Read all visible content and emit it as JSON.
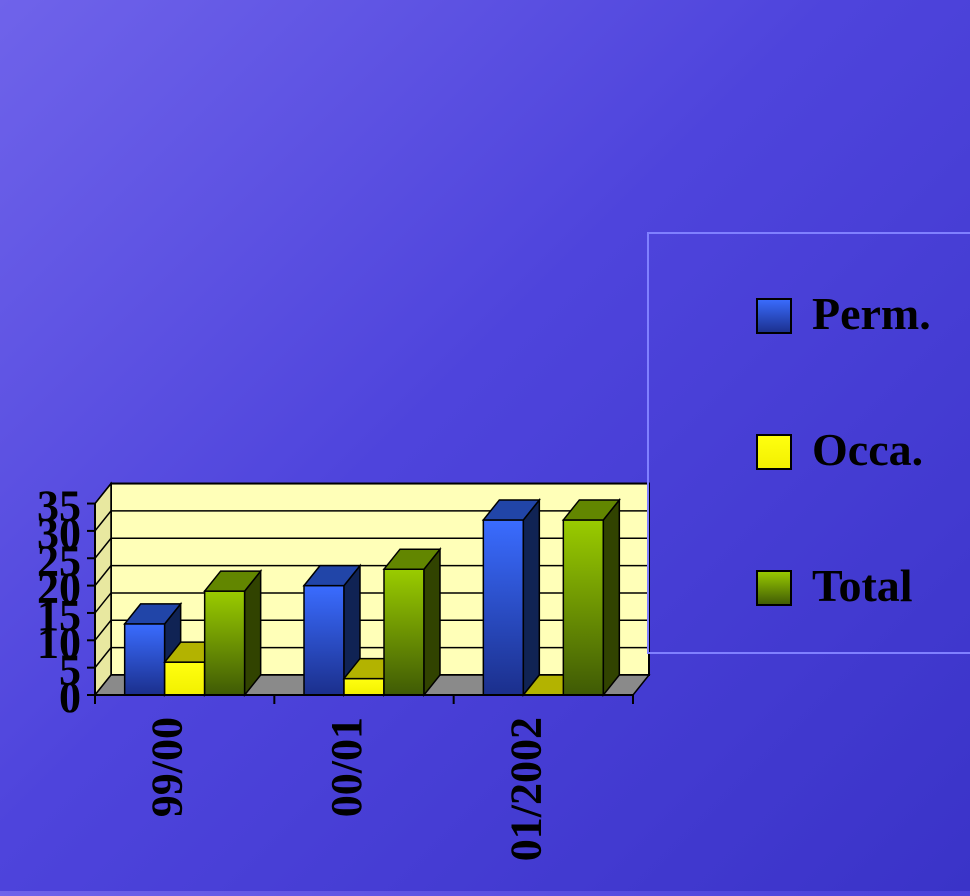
{
  "chart_data": {
    "type": "bar",
    "title": "",
    "xlabel": "",
    "ylabel": "",
    "categories": [
      "99/00",
      "00/01",
      "01/2002"
    ],
    "series": [
      {
        "name": "Perm.",
        "values": [
          13,
          20,
          32
        ],
        "color": "#2f63f0"
      },
      {
        "name": "Occa.",
        "values": [
          6,
          3,
          0
        ],
        "color": "#ffff00"
      },
      {
        "name": "Total",
        "values": [
          19,
          23,
          32
        ],
        "color": "#8cc000"
      }
    ],
    "ylim": [
      0,
      35
    ],
    "yticks": [
      "0",
      "5",
      "10",
      "15",
      "20",
      "25",
      "30",
      "35"
    ],
    "grid": true,
    "legend_position": "right",
    "plot_background": "#ffffb8"
  }
}
